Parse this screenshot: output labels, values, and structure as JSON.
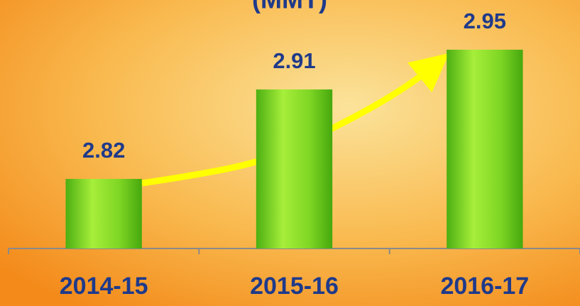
{
  "chart_data": {
    "type": "bar",
    "title": "(MMT)",
    "categories": [
      "2014-15",
      "2015-16",
      "2016-17"
    ],
    "values": [
      2.82,
      2.91,
      2.95
    ],
    "color": "#7ed321",
    "ylim": [
      2.75,
      3.0
    ]
  }
}
